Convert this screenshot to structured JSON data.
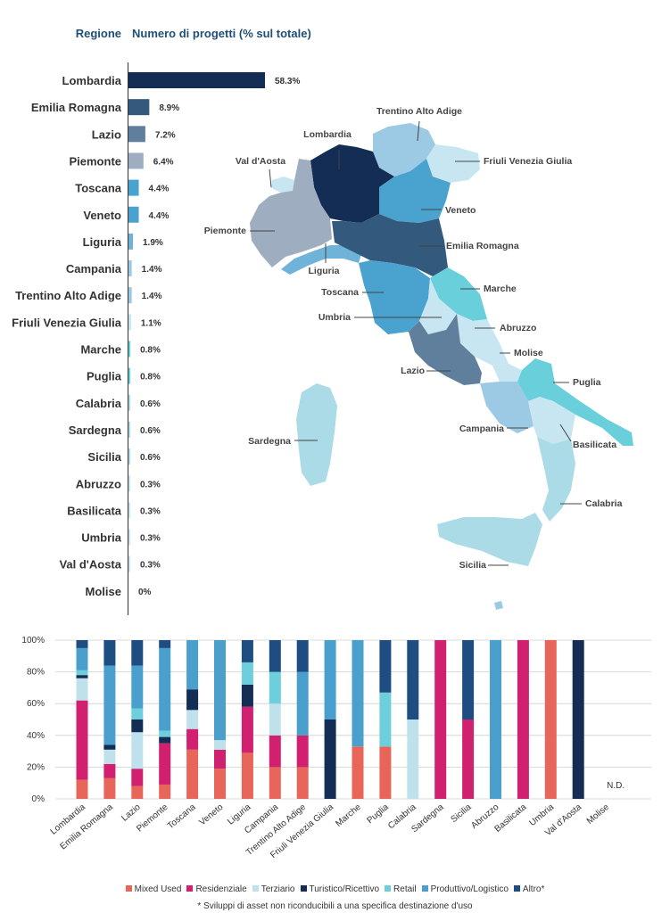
{
  "header": {
    "region_title": "Regione",
    "value_title": "Numero di progetti (% sul totale)"
  },
  "colors": {
    "darknavy": "#132d55",
    "steel": "#33597c",
    "slate": "#5f7f9d",
    "grey": "#9eaec0",
    "mid": "#4aa3cf",
    "light": "#9ccae4",
    "pale": "#c8e6f1",
    "teal": "#69cfdb",
    "sand": "#abdbe6",
    "mixed": "#e8655a",
    "resid": "#d1206f",
    "terz": "#bfe1ec",
    "turis": "#132d55",
    "retail": "#6dcfdc",
    "prod": "#4b9fcc",
    "altro": "#1e4d82"
  },
  "chart_data": [
    {
      "type": "bar",
      "orientation": "horizontal",
      "categories": [
        "Lombardia",
        "Emilia Romagna",
        "Lazio",
        "Piemonte",
        "Toscana",
        "Veneto",
        "Liguria",
        "Campania",
        "Trentino Alto Adige",
        "Friuli Venezia Giulia",
        "Marche",
        "Puglia",
        "Calabria",
        "Sardegna",
        "Sicilia",
        "Abruzzo",
        "Basilicata",
        "Umbria",
        "Val d'Aosta",
        "Molise"
      ],
      "values": [
        58.3,
        8.9,
        7.2,
        6.4,
        4.4,
        4.4,
        1.9,
        1.4,
        1.4,
        1.1,
        0.8,
        0.8,
        0.6,
        0.6,
        0.6,
        0.3,
        0.3,
        0.3,
        0.3,
        0
      ],
      "value_labels": [
        "58.3%",
        "8.9%",
        "7.2%",
        "6.4%",
        "4.4%",
        "4.4%",
        "1.9%",
        "1.4%",
        "1.4%",
        "1.1%",
        "0.8%",
        "0.8%",
        "0.6%",
        "0.6%",
        "0.6%",
        "0.3%",
        "0.3%",
        "0.3%",
        "0.3%",
        "0%"
      ],
      "bar_colors": [
        "#132d55",
        "#33597c",
        "#5f7f9d",
        "#9eaec0",
        "#4aa3cf",
        "#4aa3cf",
        "#6fb3d9",
        "#9ccae4",
        "#9ccae4",
        "#c8e6f1",
        "#69cfdb",
        "#69cfdb",
        "#abdbe6",
        "#abdbe6",
        "#abdbe6",
        "#c8e6f1",
        "#c8e6f1",
        "#c8e6f1",
        "#c8e6f1",
        "#c8e6f1"
      ],
      "xlim": [
        0,
        58.3
      ]
    },
    {
      "type": "map",
      "labels": [
        "Trentino Alto Adige",
        "Lombardia",
        "Val d'Aosta",
        "Friuli Venezia Giulia",
        "Veneto",
        "Emilia Romagna",
        "Piemonte",
        "Liguria",
        "Marche",
        "Toscana",
        "Umbria",
        "Abruzzo",
        "Molise",
        "Lazio",
        "Puglia",
        "Campania",
        "Basilicata",
        "Sardegna",
        "Calabria",
        "Sicilia"
      ]
    },
    {
      "type": "bar",
      "stacked": true,
      "categories": [
        "Lombardia",
        "Emilia Romagna",
        "Lazio",
        "Piemonte",
        "Toscana",
        "Veneto",
        "Liguria",
        "Campania",
        "Trentino Alto Adige",
        "Friuli Venezia Giulia",
        "Marche",
        "Puglia",
        "Calabria",
        "Sardegna",
        "Sicilia",
        "Abruzzo",
        "Basilicata",
        "Umbria",
        "Val d'Aosta",
        "Molise"
      ],
      "yticks": [
        "0%",
        "20%",
        "40%",
        "60%",
        "80%",
        "100%"
      ],
      "ylim": [
        0,
        100
      ],
      "na_label": "N.D.",
      "series": [
        {
          "name": "Mixed Used",
          "color": "#e8655a",
          "values": [
            12,
            13,
            8,
            9,
            31,
            19,
            29,
            20,
            20,
            0,
            33,
            33,
            0,
            0,
            0,
            0,
            0,
            100,
            0,
            0
          ]
        },
        {
          "name": "Residenziale",
          "color": "#d1206f",
          "values": [
            50,
            9,
            11,
            26,
            13,
            12,
            29,
            20,
            20,
            0,
            0,
            0,
            0,
            100,
            50,
            0,
            100,
            0,
            0,
            0
          ]
        },
        {
          "name": "Terziario",
          "color": "#bfe1ec",
          "values": [
            14,
            9,
            23,
            0,
            12,
            6,
            0,
            20,
            0,
            0,
            0,
            0,
            50,
            0,
            0,
            0,
            0,
            0,
            0,
            0
          ]
        },
        {
          "name": "Turistico/Ricettivo",
          "color": "#132d55",
          "values": [
            2,
            3,
            8,
            4,
            13,
            0,
            14,
            0,
            0,
            50,
            0,
            0,
            0,
            0,
            0,
            0,
            0,
            0,
            100,
            0
          ]
        },
        {
          "name": "Retail",
          "color": "#6dcfdc",
          "values": [
            3,
            0,
            7,
            4,
            0,
            0,
            14,
            20,
            0,
            0,
            0,
            34,
            0,
            0,
            0,
            0,
            0,
            0,
            0,
            0
          ]
        },
        {
          "name": "Produttivo/Logistico",
          "color": "#4b9fcc",
          "values": [
            14,
            50,
            27,
            52,
            31,
            63,
            0,
            0,
            40,
            50,
            67,
            0,
            0,
            0,
            0,
            100,
            0,
            0,
            0,
            0
          ]
        },
        {
          "name": "Altro*",
          "color": "#1e4d82",
          "values": [
            5,
            16,
            16,
            5,
            0,
            0,
            14,
            20,
            20,
            0,
            0,
            33,
            50,
            0,
            50,
            0,
            0,
            0,
            0,
            0
          ]
        }
      ],
      "footnote": "* Sviluppi di asset non riconducibili a una specifica destinazione d'uso"
    }
  ]
}
